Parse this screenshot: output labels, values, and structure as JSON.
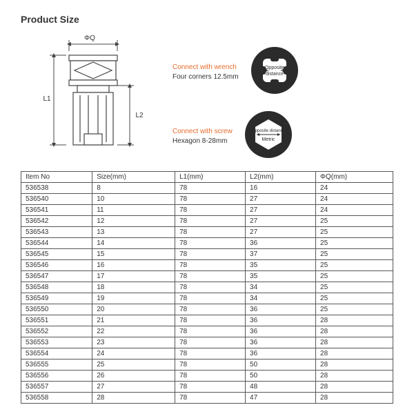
{
  "title": "Product Size",
  "diagram": {
    "label_top": "ΦQ",
    "label_left": "L1",
    "label_right": "L2",
    "stroke": "#444444",
    "fill": "#ffffff"
  },
  "callouts": [
    {
      "title": "Connect with wrench",
      "subtitle": "Four corners 12.5mm",
      "circle_label_top": "Opposite",
      "circle_label_bottom": "distance",
      "shape": "square",
      "bg": "#2b2b2b",
      "fg": "#ffffff"
    },
    {
      "title": "Connect with screw",
      "subtitle": "Hexagon 8-28mm",
      "circle_label_top": "Opposite distance",
      "circle_label_bottom": "Metric",
      "shape": "hex",
      "bg": "#2b2b2b",
      "fg": "#ffffff"
    }
  ],
  "table": {
    "columns": [
      "Item No",
      "Size(mm)",
      "L1(mm)",
      "L2(mm)",
      "ΦQ(mm)"
    ],
    "rows": [
      [
        "536538",
        "8",
        "78",
        "16",
        "24"
      ],
      [
        "536540",
        "10",
        "78",
        "27",
        "24"
      ],
      [
        "536541",
        "11",
        "78",
        "27",
        "24"
      ],
      [
        "536542",
        "12",
        "78",
        "27",
        "25"
      ],
      [
        "536543",
        "13",
        "78",
        "27",
        "25"
      ],
      [
        "536544",
        "14",
        "78",
        "36",
        "25"
      ],
      [
        "536545",
        "15",
        "78",
        "37",
        "25"
      ],
      [
        "536546",
        "16",
        "78",
        "35",
        "25"
      ],
      [
        "536547",
        "17",
        "78",
        "35",
        "25"
      ],
      [
        "536548",
        "18",
        "78",
        "34",
        "25"
      ],
      [
        "536549",
        "19",
        "78",
        "34",
        "25"
      ],
      [
        "536550",
        "20",
        "78",
        "36",
        "25"
      ],
      [
        "536551",
        "21",
        "78",
        "36",
        "28"
      ],
      [
        "536552",
        "22",
        "78",
        "36",
        "28"
      ],
      [
        "536553",
        "23",
        "78",
        "36",
        "28"
      ],
      [
        "536554",
        "24",
        "78",
        "36",
        "28"
      ],
      [
        "536555",
        "25",
        "78",
        "50",
        "28"
      ],
      [
        "536556",
        "26",
        "78",
        "50",
        "28"
      ],
      [
        "536557",
        "27",
        "78",
        "48",
        "28"
      ],
      [
        "536558",
        "28",
        "78",
        "47",
        "28"
      ]
    ]
  },
  "colors": {
    "accent": "#e86b2b",
    "text": "#333333",
    "border": "#555555"
  }
}
